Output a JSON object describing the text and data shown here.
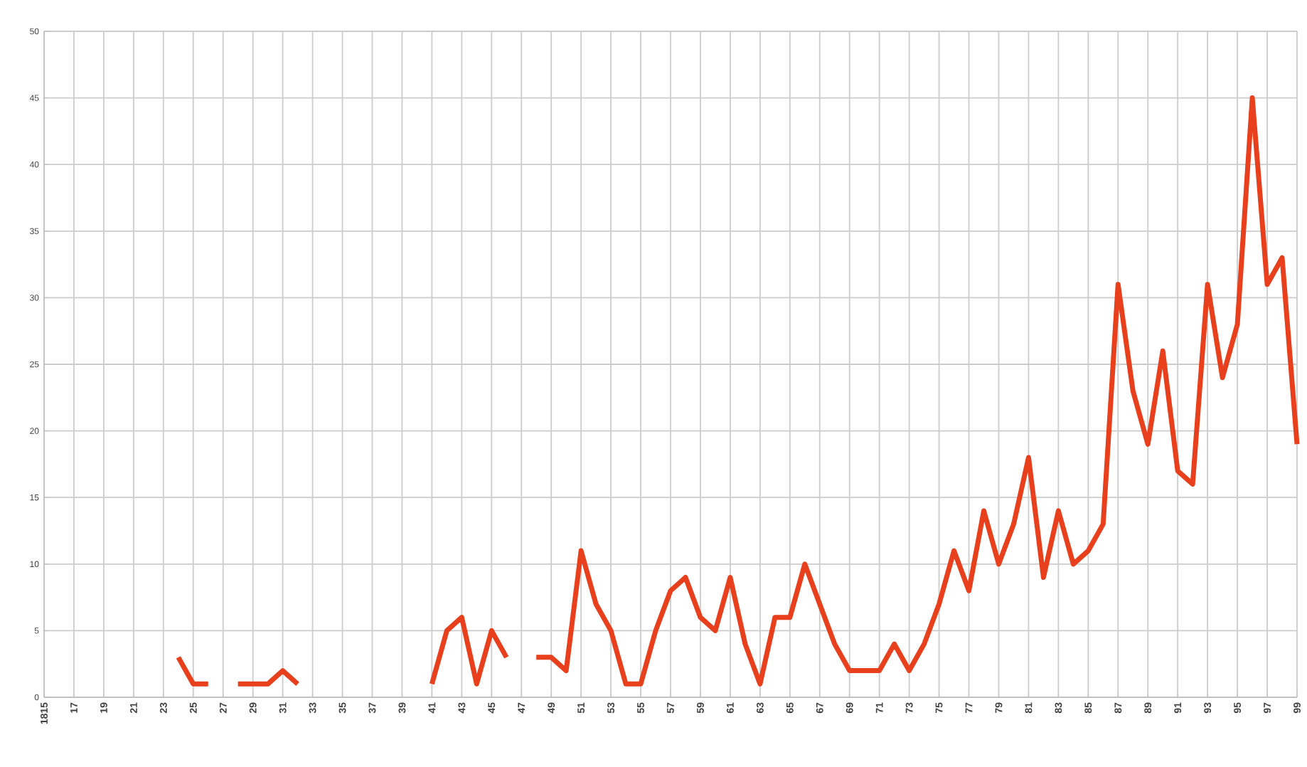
{
  "chart_data": {
    "type": "line",
    "x": [
      1824,
      1825,
      1826,
      1827,
      1828,
      1829,
      1830,
      1831,
      1832,
      1833,
      1834,
      1835,
      1836,
      1837,
      1838,
      1839,
      1840,
      1841,
      1842,
      1843,
      1844,
      1845,
      1846,
      1847,
      1848,
      1849,
      1850,
      1851,
      1852,
      1853,
      1854,
      1855,
      1856,
      1857,
      1858,
      1859,
      1860,
      1861,
      1862,
      1863,
      1864,
      1865,
      1866,
      1867,
      1868,
      1869,
      1870,
      1871,
      1872,
      1873,
      1874,
      1875,
      1876,
      1877,
      1878,
      1879,
      1880,
      1881,
      1882,
      1883,
      1884,
      1885,
      1886,
      1887,
      1888,
      1889,
      1890,
      1891,
      1892,
      1893,
      1894,
      1895,
      1896,
      1897,
      1898,
      1899
    ],
    "values": [
      3,
      1,
      1,
      null,
      1,
      1,
      1,
      2,
      1,
      null,
      null,
      null,
      null,
      null,
      null,
      null,
      null,
      1,
      5,
      6,
      1,
      5,
      3,
      null,
      3,
      3,
      2,
      11,
      7,
      5,
      1,
      1,
      5,
      8,
      9,
      6,
      5,
      9,
      4,
      1,
      6,
      6,
      10,
      7,
      4,
      2,
      2,
      2,
      4,
      2,
      4,
      7,
      11,
      8,
      14,
      10,
      13,
      18,
      9,
      14,
      10,
      11,
      13,
      31,
      23,
      19,
      26,
      17,
      16,
      31,
      24,
      28,
      45,
      31,
      33,
      19
    ],
    "color": "#e8401c",
    "xlim": [
      1815,
      1899
    ],
    "xticks": [
      1815,
      {
        "value": 1817,
        "label": "17"
      },
      {
        "value": 1819,
        "label": "19"
      },
      {
        "value": 1821,
        "label": "21"
      },
      {
        "value": 1823,
        "label": "23"
      },
      {
        "value": 1825,
        "label": "25"
      },
      {
        "value": 1827,
        "label": "27"
      },
      {
        "value": 1829,
        "label": "29"
      },
      {
        "value": 1831,
        "label": "31"
      },
      {
        "value": 1833,
        "label": "33"
      },
      {
        "value": 1835,
        "label": "35"
      },
      {
        "value": 1837,
        "label": "37"
      },
      {
        "value": 1839,
        "label": "39"
      },
      {
        "value": 1841,
        "label": "41"
      },
      {
        "value": 1843,
        "label": "43"
      },
      {
        "value": 1845,
        "label": "45"
      },
      {
        "value": 1847,
        "label": "47"
      },
      {
        "value": 1849,
        "label": "49"
      },
      {
        "value": 1851,
        "label": "51"
      },
      {
        "value": 1853,
        "label": "53"
      },
      {
        "value": 1855,
        "label": "55"
      },
      {
        "value": 1857,
        "label": "57"
      },
      {
        "value": 1859,
        "label": "59"
      },
      {
        "value": 1861,
        "label": "61"
      },
      {
        "value": 1863,
        "label": "63"
      },
      {
        "value": 1865,
        "label": "65"
      },
      {
        "value": 1867,
        "label": "67"
      },
      {
        "value": 1869,
        "label": "69"
      },
      {
        "value": 1871,
        "label": "71"
      },
      {
        "value": 1873,
        "label": "73"
      },
      {
        "value": 1875,
        "label": "75"
      },
      {
        "value": 1877,
        "label": "77"
      },
      {
        "value": 1879,
        "label": "79"
      },
      {
        "value": 1881,
        "label": "81"
      },
      {
        "value": 1883,
        "label": "83"
      },
      {
        "value": 1885,
        "label": "85"
      },
      {
        "value": 1887,
        "label": "87"
      },
      {
        "value": 1889,
        "label": "89"
      },
      {
        "value": 1891,
        "label": "91"
      },
      {
        "value": 1893,
        "label": "93"
      },
      {
        "value": 1895,
        "label": "95"
      },
      {
        "value": 1897,
        "label": "97"
      },
      {
        "value": 1899,
        "label": "99"
      }
    ],
    "ylim": [
      0,
      50
    ],
    "yticks": [
      0,
      5,
      10,
      15,
      20,
      25,
      30,
      35,
      40,
      45,
      50
    ],
    "grid": true,
    "marker": "none",
    "line_style": "solid"
  }
}
